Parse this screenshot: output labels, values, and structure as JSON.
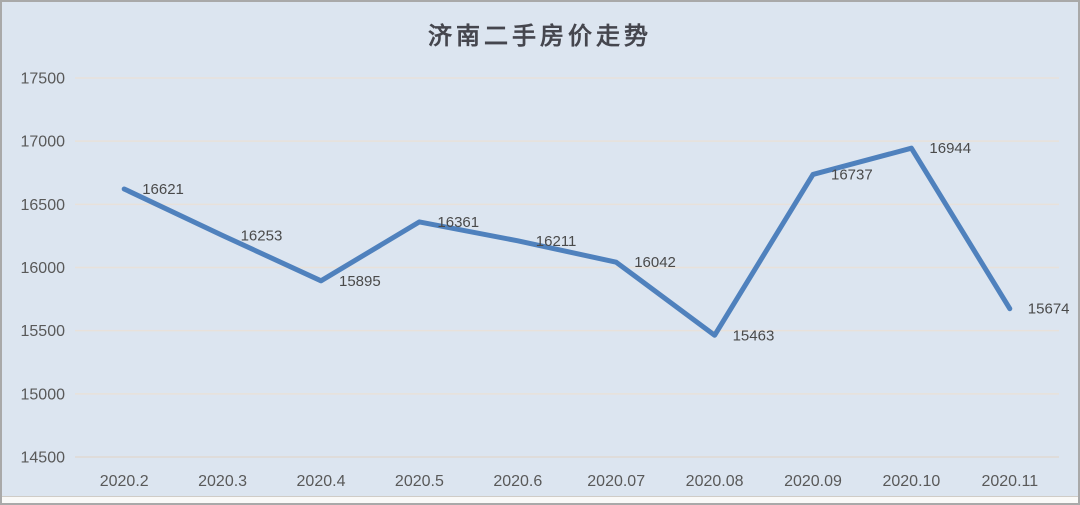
{
  "chart_data": {
    "type": "line",
    "title": "济南二手房价走势",
    "xlabel": "",
    "ylabel": "",
    "categories": [
      "2020.2",
      "2020.3",
      "2020.4",
      "2020.5",
      "2020.6",
      "2020.07",
      "2020.08",
      "2020.09",
      "2020.10",
      "2020.11"
    ],
    "values": [
      16621,
      16253,
      15895,
      16361,
      16211,
      16042,
      15463,
      16737,
      16944,
      15674
    ],
    "data_labels": [
      "16621",
      "16253",
      "15895",
      "16361",
      "16211",
      "16042",
      "15463",
      "16737",
      "16944",
      "15674"
    ],
    "y_ticks": [
      "17500",
      "17000",
      "16500",
      "16000",
      "15500",
      "15000",
      "14500"
    ],
    "ylim": [
      14500,
      17500
    ],
    "ytick_step": 500,
    "grid": "horizontal-only",
    "legend": "none",
    "markers": "none",
    "colors": {
      "line": "#4f81bd",
      "grid": "#e8e1da",
      "axis_line": "#e0dad3",
      "tick_label": "#595959",
      "data_label": "#4a4a4a",
      "title": "#45464e",
      "background": "#dce5f0",
      "frame_border": "#a9a9a9"
    }
  }
}
